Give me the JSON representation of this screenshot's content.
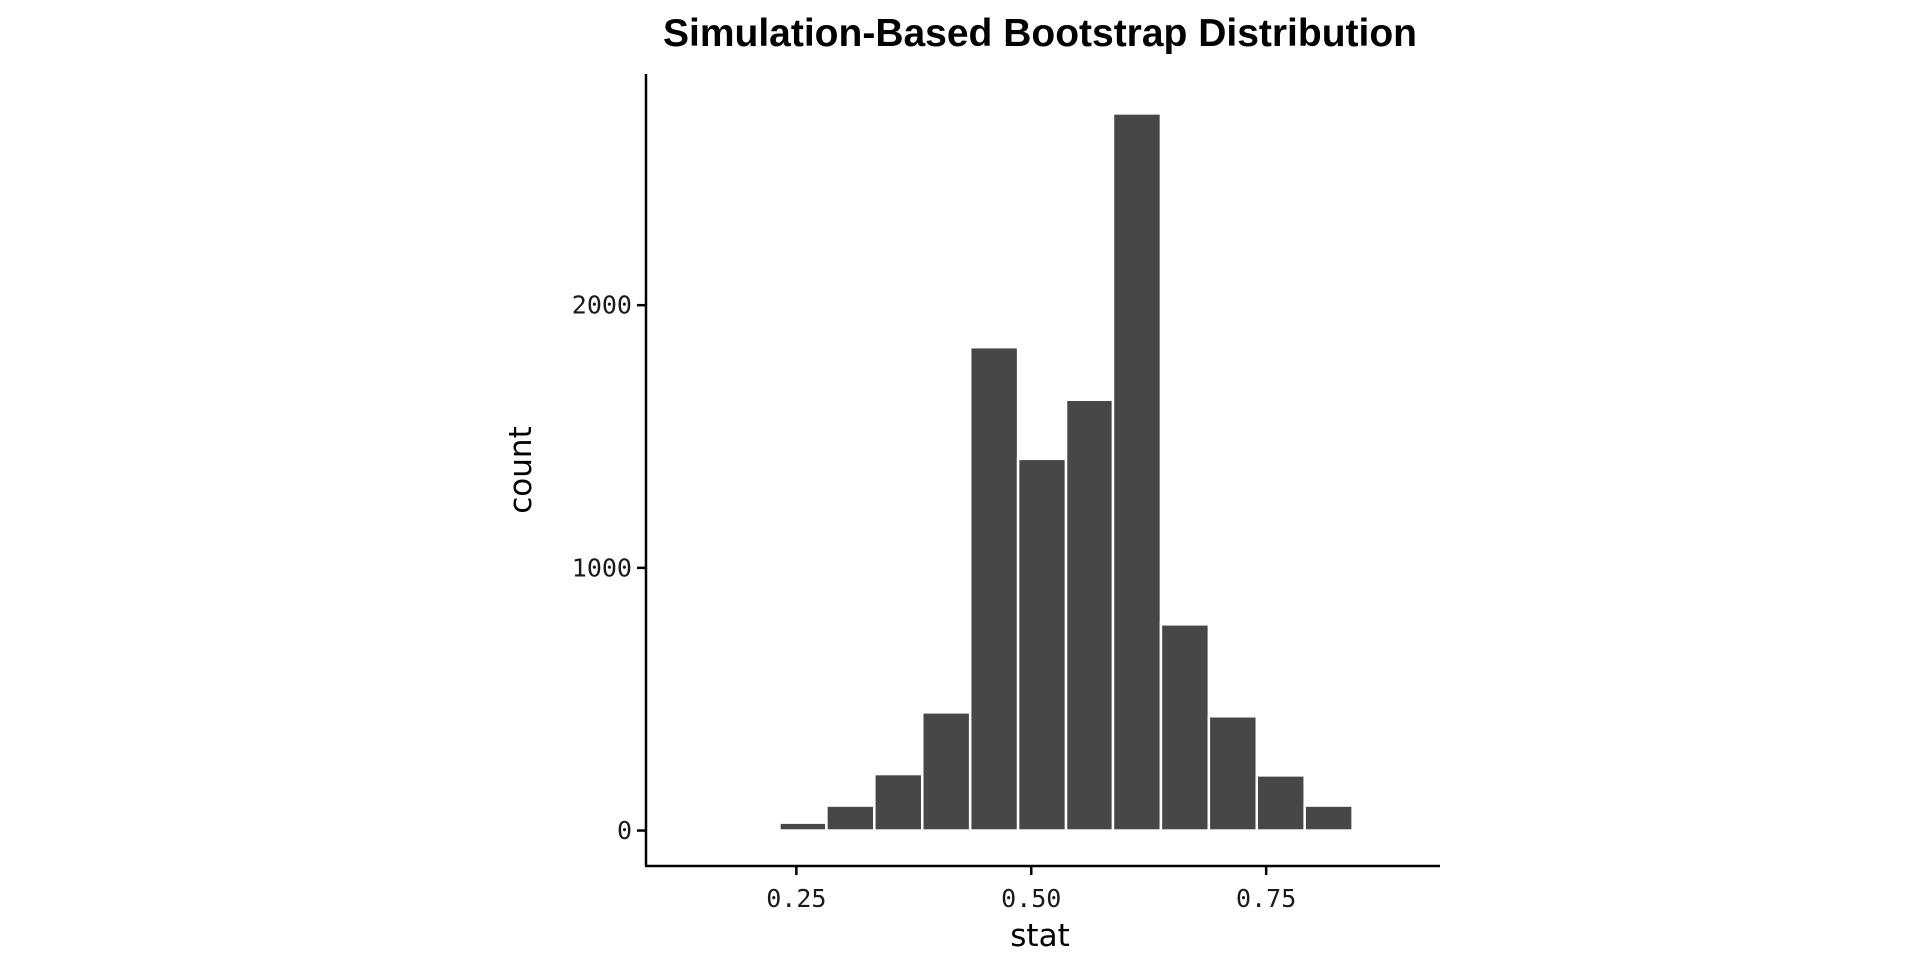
{
  "chart_data": {
    "type": "histogram",
    "title": "Simulation-Based Bootstrap Distribution",
    "xlabel": "stat",
    "ylabel": "count",
    "xlim": [
      0.09,
      0.935
    ],
    "ylim": [
      -135,
      2880
    ],
    "x_ticks": [
      0.25,
      0.5,
      0.75
    ],
    "x_tick_labels": [
      "0.25",
      "0.50",
      "0.75"
    ],
    "y_ticks": [
      0,
      1000,
      2000
    ],
    "y_tick_labels": [
      "0",
      "1000",
      "2000"
    ],
    "bin_width": 0.05,
    "bins": [
      {
        "x0": 0.232,
        "x1": 0.282,
        "count": 30
      },
      {
        "x0": 0.282,
        "x1": 0.333,
        "count": 95
      },
      {
        "x0": 0.333,
        "x1": 0.384,
        "count": 215
      },
      {
        "x0": 0.384,
        "x1": 0.435,
        "count": 450
      },
      {
        "x0": 0.435,
        "x1": 0.486,
        "count": 1840
      },
      {
        "x0": 0.486,
        "x1": 0.537,
        "count": 1415
      },
      {
        "x0": 0.537,
        "x1": 0.587,
        "count": 1640
      },
      {
        "x0": 0.587,
        "x1": 0.638,
        "count": 2730
      },
      {
        "x0": 0.638,
        "x1": 0.689,
        "count": 785
      },
      {
        "x0": 0.689,
        "x1": 0.74,
        "count": 435
      },
      {
        "x0": 0.74,
        "x1": 0.791,
        "count": 210
      },
      {
        "x0": 0.791,
        "x1": 0.842,
        "count": 95
      }
    ],
    "bar_color": "#474747",
    "bar_outline_color": "#ffffff",
    "grid": false,
    "legend": false
  }
}
